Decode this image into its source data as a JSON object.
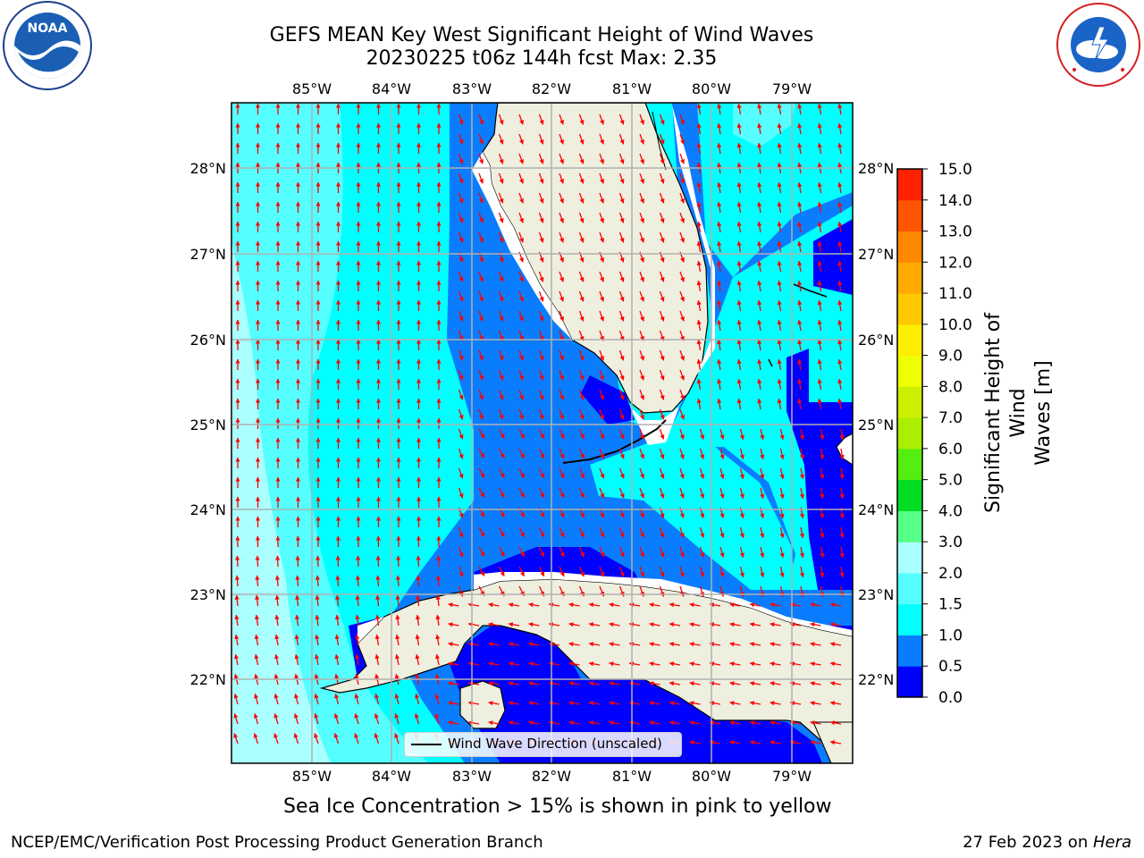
{
  "header": {
    "title_line1": "GEFS MEAN Key West Significant Height of Wind Waves",
    "title_line2": "20230225 t06z 144h fcst   Max: 2.35"
  },
  "logos": {
    "left": "noaa-logo",
    "left_text": "NOAA",
    "left_ring_text": "NATIONAL OCEANIC AND ATMOSPHERIC ADMINISTRATION · U.S. DEPARTMENT OF COMMERCE",
    "right": "national-weather-service-logo",
    "right_ring_text": "NATIONAL WEATHER SERVICE"
  },
  "map": {
    "lon_ticks": [
      "85°W",
      "84°W",
      "83°W",
      "82°W",
      "81°W",
      "80°W",
      "79°W"
    ],
    "lat_ticks": [
      "28°N",
      "27°N",
      "26°N",
      "25°N",
      "24°N",
      "23°N",
      "22°N"
    ],
    "grid": true,
    "arrow_color": "#ff0000",
    "land_color": "#efefdf",
    "legend": {
      "line_label": "Wind Wave Direction (unscaled)"
    }
  },
  "colorbar": {
    "label": "Significant Height of Wind Waves [m]",
    "label_line1": "Significant Height of Wind",
    "label_line2": "Waves [m]",
    "ticks": [
      "0.0",
      "0.5",
      "1.0",
      "1.5",
      "2.0",
      "3.0",
      "4.0",
      "5.0",
      "6.0",
      "7.0",
      "8.0",
      "9.0",
      "10.0",
      "11.0",
      "12.0",
      "13.0",
      "14.0",
      "15.0"
    ],
    "colors": [
      "#0000ff",
      "#0a7dff",
      "#00ffff",
      "#55ffff",
      "#aaffff",
      "#55ff88",
      "#00dd22",
      "#55ee11",
      "#aaee00",
      "#ccee00",
      "#eeff00",
      "#ffee00",
      "#ffc800",
      "#ffaa00",
      "#ff8800",
      "#ff5500",
      "#ff2200"
    ]
  },
  "notes": {
    "sea_ice": "Sea Ice Concentration > 15% is shown in pink to yellow"
  },
  "footer": {
    "left": "NCEP/EMC/Verification Post Processing Product Generation Branch",
    "right_date": "27 Feb 2023 on ",
    "right_host": "Hera"
  }
}
